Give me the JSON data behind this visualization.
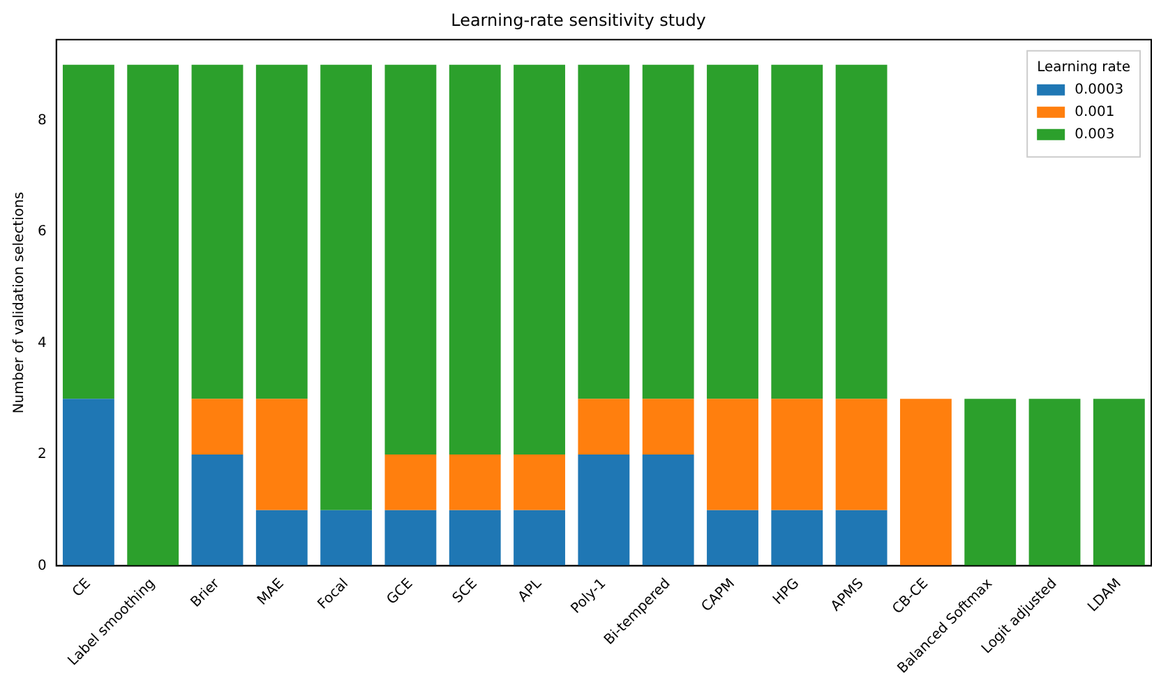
{
  "chart_data": {
    "type": "bar",
    "title": "Learning-rate sensitivity study",
    "ylabel": "Number of validation selections",
    "legend_title": "Learning rate",
    "stacked": true,
    "legend": "top right",
    "grid": false,
    "categories": [
      "CE",
      "Label smoothing",
      "Brier",
      "MAE",
      "Focal",
      "GCE",
      "SCE",
      "APL",
      "Poly-1",
      "Bi-tempered",
      "CAPM",
      "HPG",
      "APMS",
      "CB-CE",
      "Balanced Softmax",
      "Logit adjusted",
      "LDAM"
    ],
    "series": [
      {
        "name": "0.0003",
        "color": "#1f77b4",
        "values": [
          3,
          0,
          2,
          1,
          1,
          1,
          1,
          1,
          2,
          2,
          1,
          1,
          1,
          0,
          0,
          0,
          0
        ]
      },
      {
        "name": "0.001",
        "color": "#ff7f0e",
        "values": [
          0,
          0,
          1,
          2,
          0,
          1,
          1,
          1,
          1,
          1,
          2,
          2,
          2,
          3,
          0,
          0,
          0
        ]
      },
      {
        "name": "0.003",
        "color": "#2ca02c",
        "values": [
          6,
          9,
          6,
          6,
          8,
          7,
          7,
          7,
          6,
          6,
          6,
          6,
          6,
          0,
          3,
          3,
          3
        ]
      }
    ],
    "ylim": [
      0,
      9.45
    ],
    "yticks": [
      0,
      2,
      4,
      6,
      8
    ]
  }
}
